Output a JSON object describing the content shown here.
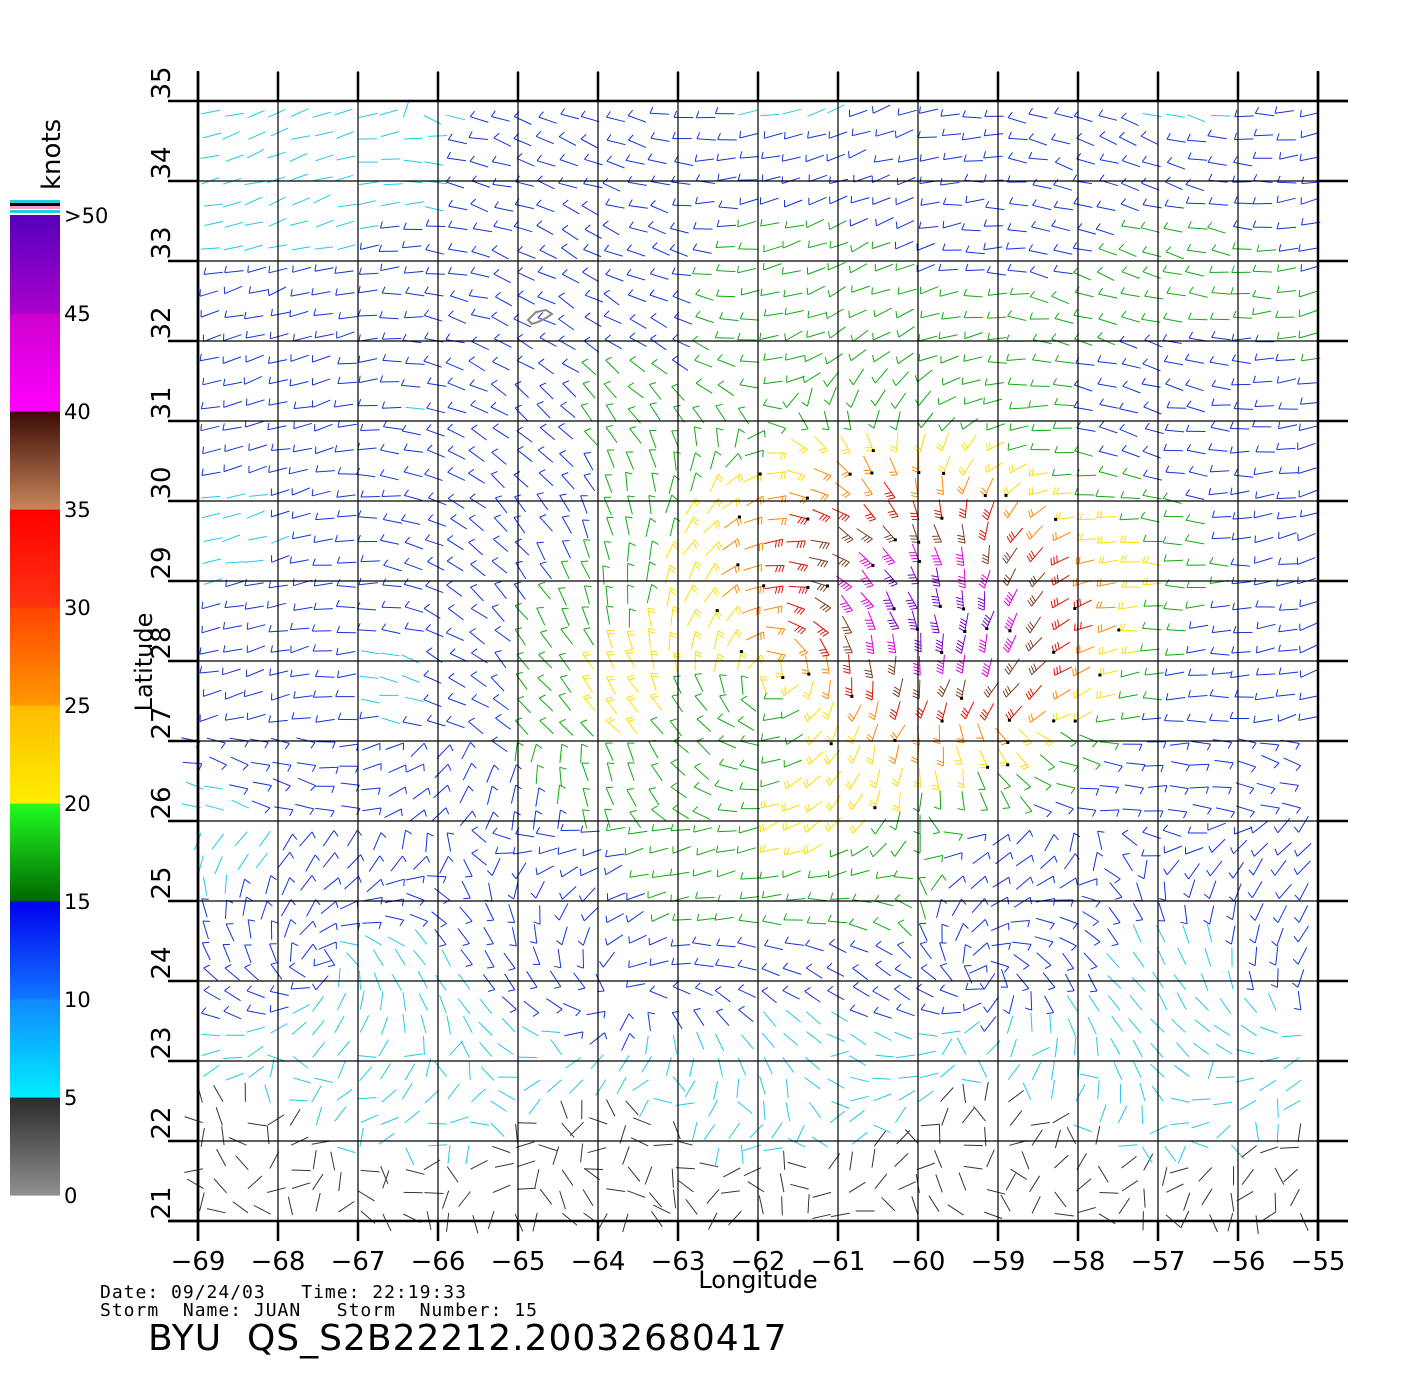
{
  "map": {
    "x_axis_label": "Longitude",
    "y_axis_label": "Latitude",
    "lon_ticks": [
      "−69",
      "−68",
      "−67",
      "−66",
      "−65",
      "−64",
      "−63",
      "−62",
      "−61",
      "−60",
      "−59",
      "−58",
      "−57",
      "−56",
      "−55"
    ],
    "lat_ticks": [
      "21",
      "22",
      "23",
      "24",
      "25",
      "26",
      "27",
      "28",
      "29",
      "30",
      "31",
      "32",
      "33",
      "34",
      "35"
    ],
    "lon_range": [
      -69,
      -55
    ],
    "lat_range": [
      21,
      35
    ],
    "grid": true,
    "field": "wind vectors (QuikSCAT scatterometer)",
    "storm_center_lon": -61.8,
    "storm_center_lat": 27.8
  },
  "colorbar": {
    "unit_label": "knots",
    "tick_labels": [
      "0",
      "5",
      "10",
      "15",
      "20",
      "25",
      "30",
      "35",
      "40",
      "45",
      ">50"
    ],
    "colors": {
      "0-5": "#444444",
      "5-10": "#22ccee",
      "10-15": "#1133ee",
      "15-20": "#11aa11",
      "20-25": "#ffdd00",
      "25-30": "#ff8800",
      "30-35": "#ee1100",
      "35-40": "#7a3f20",
      "40-45": "#ee00ee",
      "45-50": "#8800cc"
    }
  },
  "footer": {
    "date_line": "Date: 09/24/03   Time: 22:19:33",
    "storm_line": "Storm  Name: JUAN   Storm  Number: 15",
    "title": "BYU  QS_S2B22212.20032680417"
  }
}
